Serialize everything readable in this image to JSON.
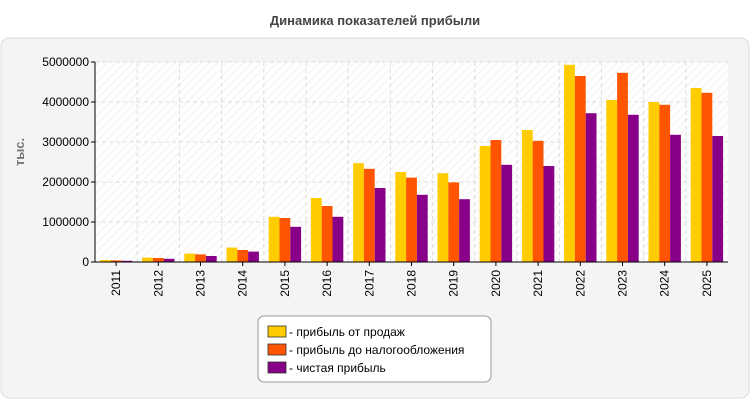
{
  "chart_data": {
    "type": "bar",
    "title": "Динамика показателей прибыли",
    "xlabel": "",
    "ylabel": "тыс.",
    "ylim": [
      0,
      5000000
    ],
    "yticks": [
      "0",
      "1000000",
      "2000000",
      "3000000",
      "4000000",
      "5000000"
    ],
    "grid": true,
    "legend_position": "bottom",
    "categories": [
      "2011",
      "2012",
      "2013",
      "2014",
      "2015",
      "2016",
      "2017",
      "2018",
      "2019",
      "2020",
      "2021",
      "2022",
      "2023",
      "2024",
      "2025"
    ],
    "series": [
      {
        "name": "- прибыль от продаж",
        "color": "#FFCC00",
        "values": [
          50000,
          110000,
          210000,
          360000,
          1130000,
          1600000,
          2470000,
          2250000,
          2220000,
          2900000,
          3300000,
          4930000,
          4050000,
          4000000,
          4350000
        ]
      },
      {
        "name": "- прибыль до налогообложения",
        "color": "#FF5500",
        "values": [
          40000,
          100000,
          190000,
          300000,
          1100000,
          1400000,
          2330000,
          2110000,
          1990000,
          3050000,
          3030000,
          4650000,
          4730000,
          3930000,
          4230000
        ]
      },
      {
        "name": "- чистая прибыль",
        "color": "#880088",
        "values": [
          30000,
          80000,
          150000,
          260000,
          880000,
          1130000,
          1850000,
          1680000,
          1570000,
          2430000,
          2400000,
          3720000,
          3680000,
          3180000,
          3150000
        ]
      }
    ]
  }
}
